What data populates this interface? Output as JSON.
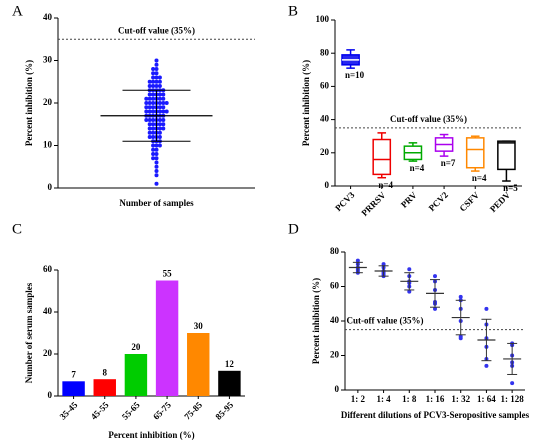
{
  "chart_data": [
    {
      "type": "strip",
      "panel": "A",
      "ylabel": "Percent inhibition (%)",
      "xlabel": "Number of samples",
      "ylim": [
        0,
        40
      ],
      "yticks": [
        0,
        10,
        20,
        30,
        40
      ],
      "cutoff": 35,
      "cutoff_label": "Cut-off value (35%)",
      "color": "#1a1aff",
      "mean": 17,
      "sd": 6,
      "values": [
        30,
        29,
        28,
        28,
        27,
        27,
        26,
        26,
        26,
        25,
        25,
        25,
        25,
        24,
        24,
        24,
        24,
        23,
        23,
        23,
        23,
        23,
        22,
        22,
        22,
        22,
        22,
        21,
        21,
        21,
        21,
        21,
        21,
        20,
        20,
        20,
        20,
        20,
        20,
        20,
        19,
        19,
        19,
        19,
        19,
        19,
        18,
        18,
        18,
        18,
        18,
        18,
        18,
        17,
        17,
        17,
        17,
        17,
        17,
        16,
        16,
        16,
        16,
        16,
        16,
        15,
        15,
        15,
        15,
        15,
        14,
        14,
        14,
        14,
        14,
        13,
        13,
        13,
        13,
        12,
        12,
        12,
        12,
        11,
        11,
        11,
        10,
        10,
        10,
        9,
        9,
        8,
        8,
        7,
        7,
        6,
        5,
        4,
        3,
        1
      ]
    },
    {
      "type": "box",
      "panel": "B",
      "ylabel": "Percent inhibition (%)",
      "ylim": [
        0,
        100
      ],
      "yticks": [
        0,
        20,
        40,
        60,
        80,
        100
      ],
      "cutoff": 35,
      "cutoff_label": "Cut-off value (35%)",
      "boxes": [
        {
          "name": "PCV3",
          "color": "#0000ee",
          "min": 71,
          "q1": 73,
          "median": 76,
          "q3": 79,
          "max": 82,
          "n_label": "n=10"
        },
        {
          "name": "PRRSV",
          "color": "#ee0000",
          "min": 5,
          "q1": 7,
          "median": 16,
          "q3": 28,
          "max": 32,
          "n_label": "n=4"
        },
        {
          "name": "PRV",
          "color": "#00aa00",
          "min": 15,
          "q1": 16,
          "median": 20,
          "q3": 24,
          "max": 26,
          "n_label": "n=4"
        },
        {
          "name": "PCV2",
          "color": "#aa00ee",
          "min": 18,
          "q1": 21,
          "median": 25,
          "q3": 29,
          "max": 31,
          "n_label": "n=7"
        },
        {
          "name": "CSFV",
          "color": "#ff8800",
          "min": 9,
          "q1": 11,
          "median": 22,
          "q3": 29,
          "max": 30,
          "n_label": "n=4"
        },
        {
          "name": "PEDV",
          "color": "#000000",
          "min": 3,
          "q1": 10,
          "median": 26,
          "q3": 27,
          "max": 27,
          "n_label": "n=5"
        }
      ]
    },
    {
      "type": "bar",
      "panel": "C",
      "ylabel": "Number of serum samples",
      "xlabel": "Percent inhibition (%)",
      "ylim": [
        0,
        60
      ],
      "yticks": [
        0,
        20,
        40,
        60
      ],
      "categories": [
        "35-45",
        "45-55",
        "55-65",
        "65-75",
        "75-85",
        "85-95"
      ],
      "values": [
        7,
        8,
        20,
        55,
        30,
        12
      ],
      "colors": [
        "#0000ff",
        "#ff0000",
        "#00cc00",
        "#cc33ff",
        "#ff8800",
        "#000000"
      ]
    },
    {
      "type": "strip",
      "panel": "D",
      "ylabel": "Percent inhibition (%)",
      "xlabel": "Different dilutions of PCV3-Seropositive samples",
      "ylim": [
        0,
        80
      ],
      "yticks": [
        0,
        20,
        40,
        60,
        80
      ],
      "cutoff": 35,
      "cutoff_label": "Cut-off value (35%)",
      "color": "#3333ee",
      "groups": [
        {
          "name": "1: 2",
          "values": [
            75,
            73,
            71,
            70,
            68,
            69
          ],
          "mean": 71,
          "sd": 3
        },
        {
          "name": "1: 4",
          "values": [
            73,
            71,
            69,
            67,
            66,
            68
          ],
          "mean": 69,
          "sd": 3
        },
        {
          "name": "1: 8",
          "values": [
            70,
            66,
            63,
            62,
            57,
            60
          ],
          "mean": 63,
          "sd": 5
        },
        {
          "name": "1: 16",
          "values": [
            66,
            63,
            58,
            51,
            47,
            50
          ],
          "mean": 56,
          "sd": 8
        },
        {
          "name": "1: 32",
          "values": [
            54,
            52,
            47,
            40,
            30,
            31
          ],
          "mean": 42,
          "sd": 10
        },
        {
          "name": "1: 64",
          "values": [
            47,
            38,
            30,
            25,
            18,
            14
          ],
          "mean": 29,
          "sd": 12
        },
        {
          "name": "1: 128",
          "values": [
            27,
            26,
            20,
            16,
            14,
            4
          ],
          "mean": 18,
          "sd": 9
        }
      ]
    }
  ]
}
